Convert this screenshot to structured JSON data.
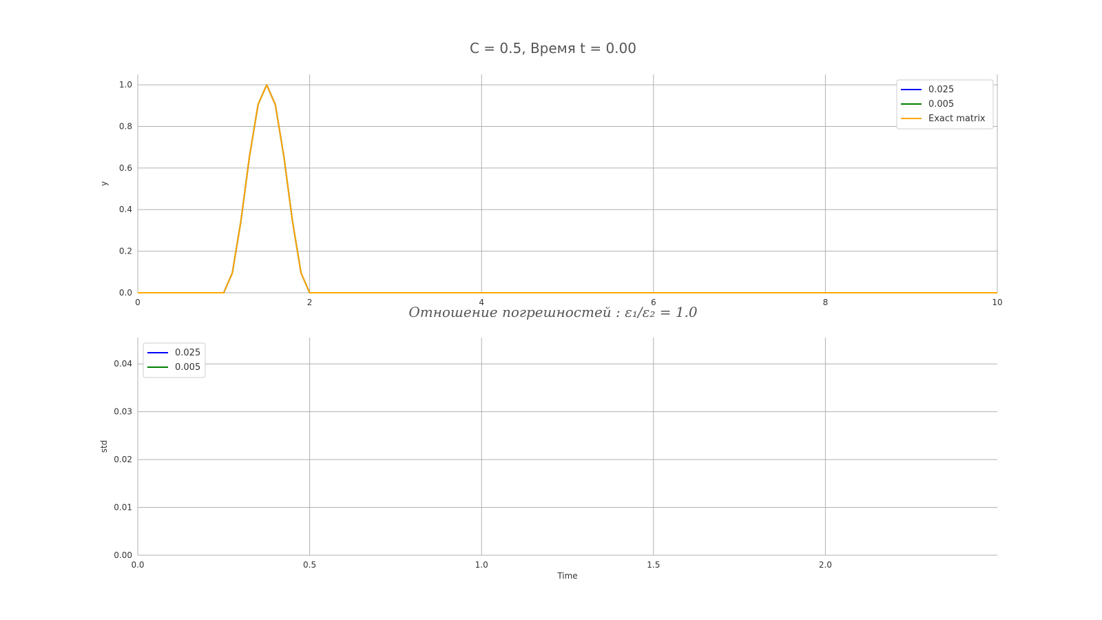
{
  "figure_title": "C = 0.5, Время t = 0.00",
  "colors": {
    "series_0025": "#0000ff",
    "series_0005": "#008000",
    "exact": "#ffa500",
    "grid": "#b0b0b0"
  },
  "chart_data": [
    {
      "type": "line",
      "title": "C = 0.5, Время t = 0.00",
      "xlabel": "",
      "ylabel": "y",
      "xlim": [
        0,
        10
      ],
      "ylim": [
        0,
        1.05
      ],
      "xticks": [
        0,
        2,
        4,
        6,
        8,
        10
      ],
      "xtick_labels": [
        "0",
        "2",
        "4",
        "6",
        "8",
        "10"
      ],
      "yticks": [
        0.0,
        0.2,
        0.4,
        0.6,
        0.8,
        1.0
      ],
      "ytick_labels": [
        "0.0",
        "0.2",
        "0.4",
        "0.6",
        "0.8",
        "1.0"
      ],
      "grid": true,
      "legend": "top-right",
      "series": [
        {
          "name": "0.025",
          "color": "#0000ff",
          "x": [
            0,
            1.0,
            1.1,
            1.2,
            1.3,
            1.4,
            1.5,
            1.6,
            1.7,
            1.8,
            1.9,
            2.0,
            10
          ],
          "y": [
            0,
            0,
            0.095,
            0.345,
            0.655,
            0.905,
            1.0,
            0.905,
            0.655,
            0.345,
            0.095,
            0,
            0
          ]
        },
        {
          "name": "0.005",
          "color": "#008000",
          "x": [
            0,
            1.0,
            1.1,
            1.2,
            1.3,
            1.4,
            1.5,
            1.6,
            1.7,
            1.8,
            1.9,
            2.0,
            10
          ],
          "y": [
            0,
            0,
            0.095,
            0.345,
            0.655,
            0.905,
            1.0,
            0.905,
            0.655,
            0.345,
            0.095,
            0,
            0
          ]
        },
        {
          "name": "Exact matrix",
          "color": "#ffa500",
          "x": [
            0,
            1.0,
            1.1,
            1.2,
            1.3,
            1.4,
            1.5,
            1.6,
            1.7,
            1.8,
            1.9,
            2.0,
            10
          ],
          "y": [
            0,
            0,
            0.095,
            0.345,
            0.655,
            0.905,
            1.0,
            0.905,
            0.655,
            0.345,
            0.095,
            0,
            0
          ]
        }
      ]
    },
    {
      "type": "line",
      "title": "Отношение погрешностей : ε₁/ε₂ = 1.0",
      "xlabel": "Time",
      "ylabel": "std",
      "xlim": [
        0,
        2.5
      ],
      "ylim": [
        0,
        0.0455
      ],
      "xticks": [
        0.0,
        0.5,
        1.0,
        1.5,
        2.0
      ],
      "xtick_labels": [
        "0.0",
        "0.5",
        "1.0",
        "1.5",
        "2.0"
      ],
      "yticks": [
        0.0,
        0.01,
        0.02,
        0.03,
        0.04
      ],
      "ytick_labels": [
        "0.00",
        "0.01",
        "0.02",
        "0.03",
        "0.04"
      ],
      "grid": true,
      "legend": "top-left",
      "series": [
        {
          "name": "0.025",
          "color": "#0000ff",
          "x": [],
          "y": []
        },
        {
          "name": "0.005",
          "color": "#008000",
          "x": [],
          "y": []
        }
      ]
    }
  ]
}
